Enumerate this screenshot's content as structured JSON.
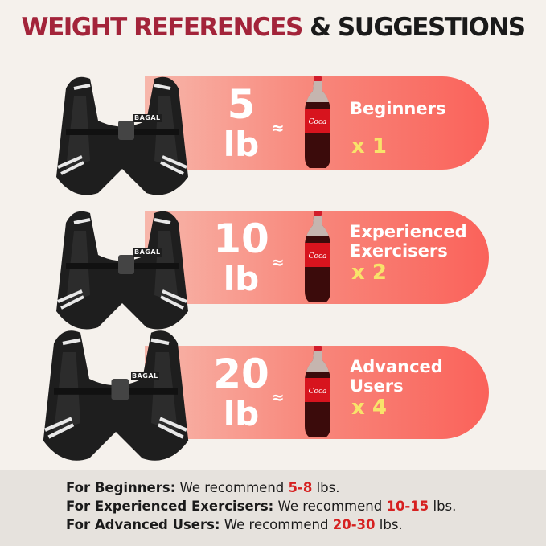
{
  "title": {
    "part1": "WEIGHT REFERENCES",
    "part2": "& SUGGESTIONS"
  },
  "colors": {
    "title_red": "#a3243a",
    "pill_start": "#f7b7ab",
    "pill_end": "#fa625a",
    "multiplier": "#f8e36a",
    "highlight": "#d62020"
  },
  "rows": [
    {
      "weight": "5",
      "unit": "lb",
      "approx": "≈",
      "level": "Beginners",
      "level2": "",
      "multiplier": "x 1",
      "brand": "BAGAL"
    },
    {
      "weight": "10",
      "unit": "lb",
      "approx": "≈",
      "level": "Experienced",
      "level2": "Exercisers",
      "multiplier": "x 2",
      "brand": "BAGAL"
    },
    {
      "weight": "20",
      "unit": "lb",
      "approx": "≈",
      "level": "Advanced",
      "level2": "Users",
      "multiplier": "x 4",
      "brand": "BAGAL"
    }
  ],
  "recommendations": [
    {
      "label": "For Beginners:",
      "text": "We recommend",
      "range": "5-8",
      "unit": "lbs."
    },
    {
      "label": "For Experienced Exercisers:",
      "text": "We recommend",
      "range": "10-15",
      "unit": "lbs."
    },
    {
      "label": "For Advanced Users:",
      "text": "We recommend",
      "range": "20-30",
      "unit": "lbs."
    }
  ]
}
